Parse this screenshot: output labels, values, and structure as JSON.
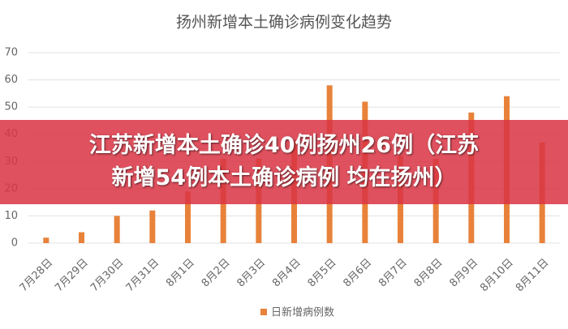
{
  "chart_data": {
    "type": "bar",
    "title": "扬州新增本土确诊病例变化趋势",
    "categories": [
      "7月28日",
      "7月29日",
      "7月30日",
      "7月31日",
      "8月1日",
      "8月2日",
      "8月3日",
      "8月4日",
      "8月5日",
      "8月6日",
      "8月7日",
      "8月8日",
      "8月9日",
      "8月10日",
      "8月11日"
    ],
    "series": [
      {
        "name": "日新增病例数",
        "color": "#e8823a",
        "values": [
          2,
          4,
          10,
          12,
          19,
          31,
          31,
          38,
          58,
          52,
          32,
          31,
          48,
          54,
          37
        ]
      }
    ],
    "ylim": [
      0,
      70
    ],
    "yticks": [
      0,
      10,
      20,
      30,
      40,
      50,
      60,
      70
    ],
    "grid": true,
    "legend": "bottom"
  },
  "overlay_caption": {
    "lines": [
      "江苏新增本土确诊40例扬州26例（江苏",
      "新增54例本土确诊病例 均在扬州）"
    ]
  }
}
